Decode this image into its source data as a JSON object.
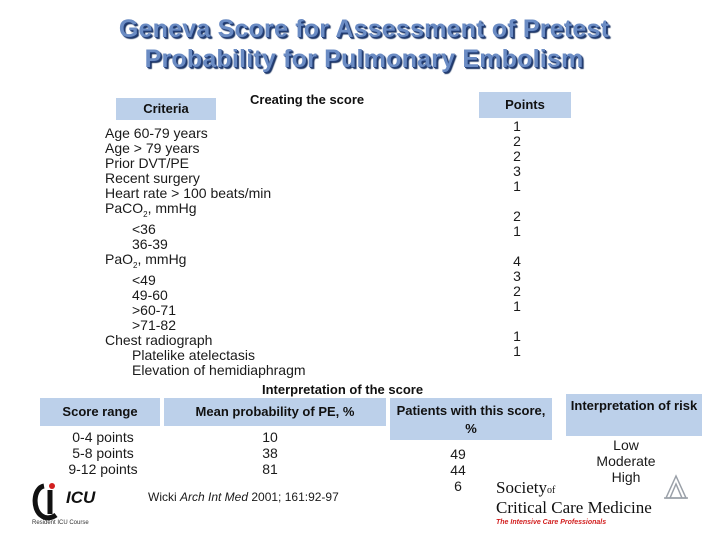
{
  "title_line1": "Geneva Score for Assessment of  Pretest",
  "title_line2": "Probability for Pulmonary Embolism",
  "creating_heading": "Creating the score",
  "criteria_header": "Criteria",
  "points_header": "Points",
  "criteria": [
    {
      "text": "Age 60-79 years",
      "indent": false
    },
    {
      "text": "Age > 79 years",
      "indent": false
    },
    {
      "text": "Prior DVT/PE",
      "indent": false
    },
    {
      "text": "Recent surgery",
      "indent": false
    },
    {
      "text": "Heart rate > 100 beats/min",
      "indent": false
    },
    {
      "text": "PaCO",
      "sub": "2",
      "suffix": ", mmHg",
      "indent": false
    },
    {
      "text": "<36",
      "indent": true
    },
    {
      "text": "36-39",
      "indent": true
    },
    {
      "text": "PaO",
      "sub": "2",
      "suffix": ", mmHg",
      "indent": false
    },
    {
      "text": "<49",
      "indent": true
    },
    {
      "text": "49-60",
      "indent": true
    },
    {
      "text": ">60-71",
      "indent": true
    },
    {
      "text": ">71-82",
      "indent": true
    },
    {
      "text": "Chest radiograph",
      "indent": false
    },
    {
      "text": "Platelike atelectasis",
      "indent": true
    },
    {
      "text": "Elevation of hemidiaphragm",
      "indent": true
    }
  ],
  "points": [
    "1",
    "2",
    "2",
    "3",
    "1",
    "",
    "2",
    "1",
    "",
    "4",
    "3",
    "2",
    "1",
    "",
    "1",
    "1"
  ],
  "interp_heading": "Interpretation of the score",
  "score_range_header": "Score range",
  "mean_prob_header": "Mean probability of PE, %",
  "patients_header": "Patients with this score, %",
  "risk_header": "Interpretation of risk",
  "score_ranges": [
    "0-4 points",
    "5-8 points",
    "9-12 points"
  ],
  "mean_probs": [
    "10",
    "38",
    "81"
  ],
  "patients": [
    "49",
    "44",
    "6"
  ],
  "risk": [
    "Low",
    "Moderate",
    "High"
  ],
  "citation_author": "Wicki ",
  "citation_journal": "Arch Int Med",
  "citation_rest": " 2001; 161:92-97",
  "icu_logo_text": "ICU",
  "icu_logo_sub": "Resident ICU Course",
  "sccm_line1": "Society",
  "sccm_of": "of",
  "sccm_line2": "Critical Care Medicine",
  "sccm_tagline": "The Intensive Care Professionals",
  "colors": {
    "title": "#6b8cc4",
    "header_fill": "#bcd0ea",
    "sccm_tagline": "#d21f1f"
  }
}
